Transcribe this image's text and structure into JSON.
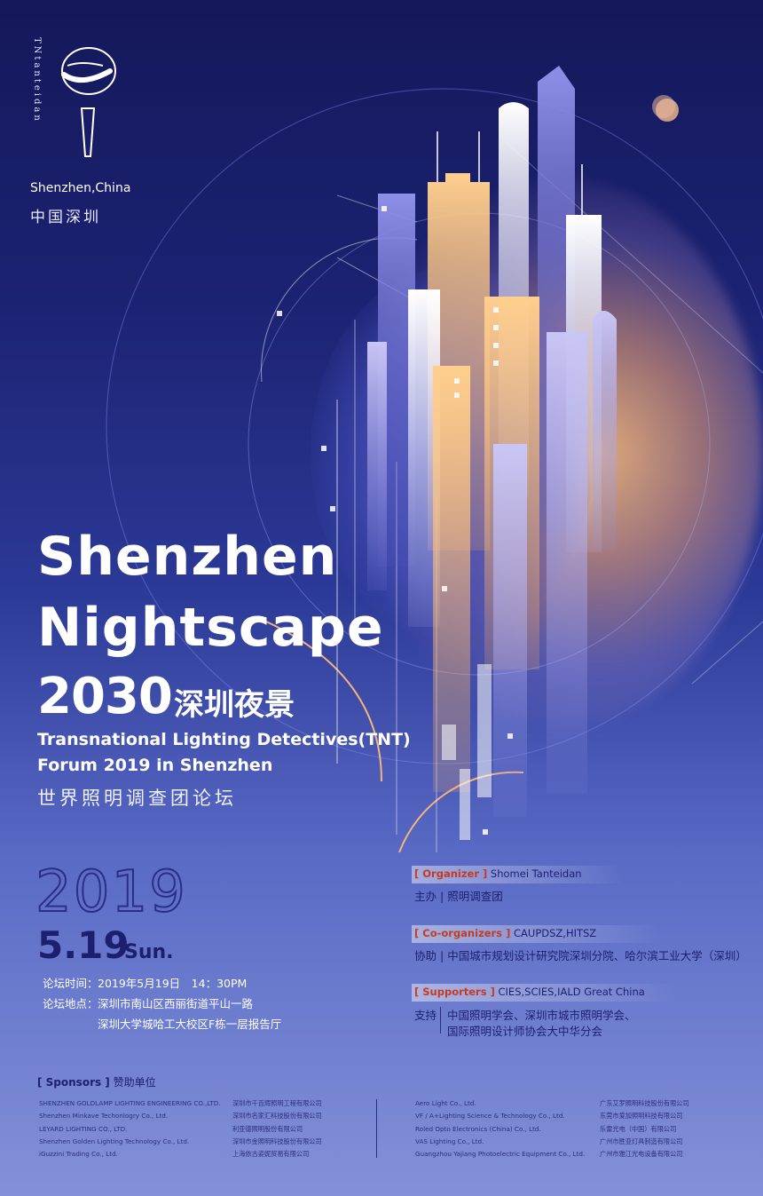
{
  "branding": {
    "logo_vertical_text": "TNtanteidan",
    "location_en": "Shenzhen,China",
    "location_cn": "中国深圳"
  },
  "title": {
    "line1": "Shenzhen",
    "line2": "Nightscape",
    "year": "2030",
    "cn": "深圳夜景"
  },
  "subtitle": {
    "line1": "Transnational Lighting Detectives(TNT)",
    "line2": "Forum 2019 in Shenzhen",
    "cn": "世界照明调查团论坛"
  },
  "date": {
    "year": "2019",
    "day": "5.19",
    "weekday": "Sun."
  },
  "event_info": {
    "time_label": "论坛时间：",
    "time_value": "2019年5月19日　14：30PM",
    "place_label": "论坛地点：",
    "place_line1": "深圳市南山区西丽街道平山一路",
    "place_line2": "深圳大学城哈工大校区F栋一层报告厅"
  },
  "organizer": {
    "tag": "[ Organizer ]",
    "value_en": "Shomei Tanteidan",
    "label_cn": "主办",
    "value_cn": "照明调查团"
  },
  "co_organizers": {
    "tag": "[ Co-organizers ]",
    "value_en": "CAUPDSZ,HITSZ",
    "label_cn": "协助",
    "value_cn": "中国城市规划设计研究院深圳分院、哈尔滨工业大学（深圳）"
  },
  "supporters": {
    "tag": "[ Supporters ]",
    "value_en": "CIES,SCIES,IALD Great China",
    "label_cn": "支持",
    "value_cn_1": "中国照明学会、深圳市城市照明学会、",
    "value_cn_2": "国际照明设计师协会大中华分会"
  },
  "sponsors": {
    "tag": "[ Sponsors ]",
    "label_cn": "赞助单位",
    "col1": [
      "SHENZHEN GOLDLAMP LIGHTING ENGINEERING CO.,LTD.",
      "Shenzhen Minkave Techonlogry Co., Ltd.",
      "LEYARD LIGHTING CO., LTD.",
      "Shenzhen Golden Lighting Technology Co., Ltd.",
      "iGuzzini Trading Co., Ltd."
    ],
    "col2": [
      "深圳市千百辉照明工程有限公司",
      "深圳市名家汇科技股份有限公司",
      "利亚德照明股份有限公司",
      "深圳市金照明科技股份有限公司",
      "上海依古姿妮贸易有限公司"
    ],
    "col3": [
      "Aero Light Co., Ltd.",
      "VF / A+Lighting Science & Technology Co., Ltd.",
      "Roled Opto Electronics (China) Co., Ltd.",
      "VAS Lighting Co., Ltd.",
      "Guangzhou Yajiang Photoelectric Equipment Co., Ltd."
    ],
    "col4": [
      "广东艾罗照明科技股份有限公司",
      "东莞市爱加照明科技有限公司",
      "乐雷光电（中国）有限公司",
      "广州市胜亚灯具制造有限公司",
      "广州市雅江光电设备有限公司"
    ]
  },
  "colors": {
    "bg_top": "#14185a",
    "bg_bottom": "#8391d8",
    "glow": "#ffbe78",
    "dark_text": "#1b1f6e",
    "accent_red": "#c63a1e"
  }
}
